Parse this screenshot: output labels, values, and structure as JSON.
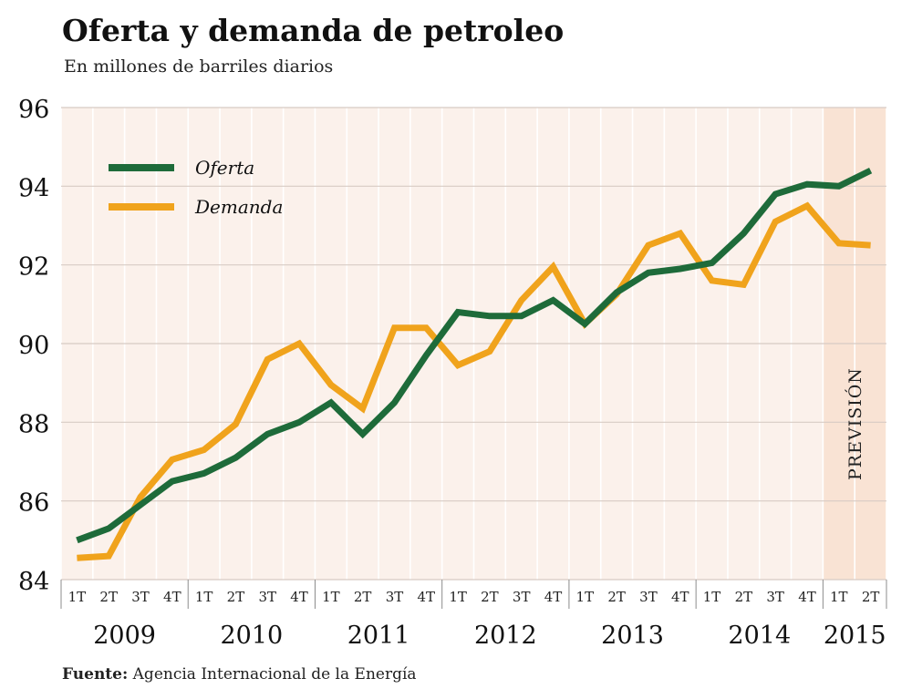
{
  "header": {
    "title": "Oferta y demanda de petroleo",
    "subtitle": "En millones de barriles diarios"
  },
  "footer": {
    "source_label": "Fuente:",
    "source_text": "Agencia Internacional de la Energía"
  },
  "chart_data": {
    "type": "line",
    "title": "Oferta y demanda de petroleo",
    "subtitle": "En millones de barriles diarios",
    "ylabel": "",
    "xlabel": "",
    "ylim": [
      84,
      96
    ],
    "yticks": [
      84,
      86,
      88,
      90,
      92,
      94,
      96
    ],
    "grid": true,
    "legend": "top-left",
    "quarter_labels": [
      "1T",
      "2T",
      "3T",
      "4T",
      "1T",
      "2T",
      "3T",
      "4T",
      "1T",
      "2T",
      "3T",
      "4T",
      "1T",
      "2T",
      "3T",
      "4T",
      "1T",
      "2T",
      "3T",
      "4T",
      "1T",
      "2T",
      "3T",
      "4T",
      "1T",
      "2T"
    ],
    "years": [
      {
        "label": "2009",
        "quarters": 4
      },
      {
        "label": "2010",
        "quarters": 4
      },
      {
        "label": "2011",
        "quarters": 4
      },
      {
        "label": "2012",
        "quarters": 4
      },
      {
        "label": "2013",
        "quarters": 4
      },
      {
        "label": "2014",
        "quarters": 4
      },
      {
        "label": "2015",
        "quarters": 2
      }
    ],
    "forecast": {
      "label": "PREVISIÓN",
      "from_index": 24,
      "to_index": 25
    },
    "series": [
      {
        "name": "Oferta",
        "color": "#1e6b3a",
        "values": [
          85.0,
          85.3,
          85.9,
          86.5,
          86.7,
          87.1,
          87.7,
          88.0,
          88.5,
          87.7,
          88.5,
          89.7,
          90.8,
          90.7,
          90.7,
          91.1,
          90.5,
          91.3,
          91.8,
          91.9,
          92.05,
          92.8,
          93.8,
          94.05,
          94.0,
          94.4
        ]
      },
      {
        "name": "Demanda",
        "color": "#f0a31c",
        "values": [
          84.55,
          84.6,
          86.1,
          87.05,
          87.3,
          87.95,
          89.6,
          90.0,
          88.95,
          88.35,
          90.4,
          90.4,
          89.45,
          89.8,
          91.1,
          91.95,
          90.5,
          91.25,
          92.5,
          92.8,
          91.6,
          91.5,
          93.1,
          93.5,
          92.55,
          92.5
        ]
      }
    ]
  },
  "colors": {
    "plot_background": "#fbf1eb",
    "forecast_background": "#f9e3d4",
    "grid": "#d7cbc4",
    "year_separator": "#8c8c8c"
  }
}
